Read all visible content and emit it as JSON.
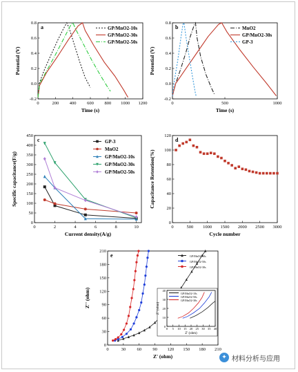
{
  "chart_data": [
    {
      "panel": "a",
      "type": "line",
      "xlabel": "Time (s)",
      "ylabel": "Potential (V)",
      "xlim": [
        0,
        1200
      ],
      "ylim": [
        -0.2,
        0.8
      ],
      "xticks": [
        0,
        200,
        400,
        600,
        800,
        1000,
        1200
      ],
      "yticks": [
        -0.2,
        0.0,
        0.2,
        0.4,
        0.6,
        0.8
      ],
      "legend_position": "top-right",
      "series": [
        {
          "name": "GP/MnO2-10s",
          "color": "#222222",
          "dash": "2,2",
          "points": [
            [
              0,
              -0.18
            ],
            [
              20,
              0.02
            ],
            [
              80,
              0.2
            ],
            [
              150,
              0.38
            ],
            [
              230,
              0.58
            ],
            [
              300,
              0.74
            ],
            [
              330,
              0.8
            ],
            [
              360,
              0.72
            ],
            [
              420,
              0.5
            ],
            [
              480,
              0.28
            ],
            [
              540,
              0.08
            ],
            [
              600,
              -0.05
            ]
          ]
        },
        {
          "name": "GP/MnO2-30s",
          "color": "#c0392b",
          "dash": "",
          "points": [
            [
              0,
              -0.18
            ],
            [
              20,
              -0.02
            ],
            [
              100,
              0.15
            ],
            [
              220,
              0.35
            ],
            [
              350,
              0.58
            ],
            [
              460,
              0.76
            ],
            [
              510,
              0.8
            ],
            [
              540,
              0.7
            ],
            [
              640,
              0.5
            ],
            [
              760,
              0.28
            ],
            [
              880,
              0.1
            ],
            [
              980,
              -0.08
            ],
            [
              1030,
              -0.18
            ]
          ]
        },
        {
          "name": "GP/MnO2-50s",
          "color": "#2ecc40",
          "dash": "6,2,1,2",
          "points": [
            [
              0,
              -0.18
            ],
            [
              20,
              0.0
            ],
            [
              100,
              0.17
            ],
            [
              200,
              0.38
            ],
            [
              290,
              0.58
            ],
            [
              370,
              0.76
            ],
            [
              400,
              0.8
            ],
            [
              430,
              0.72
            ],
            [
              520,
              0.52
            ],
            [
              620,
              0.3
            ],
            [
              720,
              0.1
            ],
            [
              800,
              -0.05
            ],
            [
              830,
              -0.1
            ]
          ]
        }
      ]
    },
    {
      "panel": "b",
      "type": "line",
      "xlabel": "Time (s)",
      "ylabel": "Potential (V)",
      "xlim": [
        0,
        1000
      ],
      "ylim": [
        -0.2,
        0.8
      ],
      "xticks": [
        0,
        500,
        1000
      ],
      "yticks": [
        -0.2,
        0.0,
        0.2,
        0.4,
        0.6,
        0.8
      ],
      "legend_position": "top-right",
      "series": [
        {
          "name": "MnO2",
          "color": "#222222",
          "dash": "6,2,1,2",
          "points": [
            [
              0,
              -0.16
            ],
            [
              30,
              0.0
            ],
            [
              80,
              0.2
            ],
            [
              130,
              0.42
            ],
            [
              170,
              0.62
            ],
            [
              210,
              0.78
            ],
            [
              220,
              0.8
            ],
            [
              235,
              0.6
            ],
            [
              270,
              0.35
            ],
            [
              320,
              0.12
            ],
            [
              370,
              -0.05
            ],
            [
              400,
              -0.14
            ]
          ]
        },
        {
          "name": "GP/MnO2-30s",
          "color": "#c0392b",
          "dash": "",
          "points": [
            [
              0,
              -0.16
            ],
            [
              30,
              0.0
            ],
            [
              120,
              0.18
            ],
            [
              230,
              0.4
            ],
            [
              340,
              0.62
            ],
            [
              440,
              0.78
            ],
            [
              470,
              0.8
            ],
            [
              520,
              0.68
            ],
            [
              640,
              0.45
            ],
            [
              770,
              0.22
            ],
            [
              900,
              0.0
            ],
            [
              990,
              -0.16
            ]
          ]
        },
        {
          "name": "GP-3",
          "color": "#3498db",
          "dash": "2,2",
          "points": [
            [
              0,
              -0.16
            ],
            [
              20,
              0.05
            ],
            [
              50,
              0.3
            ],
            [
              80,
              0.6
            ],
            [
              100,
              0.78
            ],
            [
              110,
              0.8
            ],
            [
              130,
              0.6
            ],
            [
              160,
              0.35
            ],
            [
              190,
              0.1
            ],
            [
              215,
              -0.1
            ],
            [
              225,
              -0.16
            ]
          ]
        }
      ]
    },
    {
      "panel": "c",
      "type": "line",
      "xlabel": "Current density(A/g)",
      "ylabel": "Specific capacitance(F/g)",
      "xlim": [
        0,
        10.5
      ],
      "ylim": [
        0,
        450
      ],
      "xticks": [
        0,
        2,
        4,
        6,
        8,
        10
      ],
      "yticks": [
        0,
        50,
        100,
        150,
        200,
        250,
        300,
        350,
        400,
        450
      ],
      "legend_position": "top-right",
      "categories": [
        1,
        2,
        5,
        10
      ],
      "series": [
        {
          "name": "GP-3",
          "color": "#222222",
          "marker": "square",
          "values": [
            185,
            88,
            40,
            22
          ]
        },
        {
          "name": "MnO2",
          "color": "#c0392b",
          "marker": "circle",
          "values": [
            118,
            98,
            70,
            50
          ]
        },
        {
          "name": "GP/MnO2-10s",
          "color": "#2c7fb8",
          "marker": "triangle",
          "values": [
            238,
            180,
            20,
            18
          ]
        },
        {
          "name": "GP/MnO2-30s",
          "color": "#2aa06b",
          "marker": "triangle-down",
          "values": [
            410,
            310,
            120,
            25
          ]
        },
        {
          "name": "GP/MnO2-50s",
          "color": "#b07fd6",
          "marker": "diamond",
          "values": [
            330,
            180,
            115,
            30
          ]
        }
      ]
    },
    {
      "panel": "d",
      "type": "scatter",
      "xlabel": "Cycle number",
      "ylabel": "Capacitance Retention(%)",
      "xlim": [
        0,
        3000
      ],
      "ylim": [
        0,
        120
      ],
      "xticks": [
        0,
        500,
        1000,
        1500,
        2000,
        2500,
        3000
      ],
      "yticks": [
        0,
        20,
        40,
        60,
        80,
        100,
        120
      ],
      "series": [
        {
          "name": "",
          "color": "#c0392b",
          "marker": "square",
          "points": [
            [
              100,
              100
            ],
            [
              200,
              106
            ],
            [
              300,
              109
            ],
            [
              400,
              111
            ],
            [
              500,
              114
            ],
            [
              600,
              106
            ],
            [
              700,
              104
            ],
            [
              800,
              97
            ],
            [
              900,
              95
            ],
            [
              1000,
              95
            ],
            [
              1100,
              96
            ],
            [
              1200,
              95
            ],
            [
              1300,
              91
            ],
            [
              1400,
              89
            ],
            [
              1500,
              85
            ],
            [
              1600,
              82
            ],
            [
              1700,
              79
            ],
            [
              1800,
              75
            ],
            [
              1900,
              77
            ],
            [
              2000,
              74
            ],
            [
              2100,
              73
            ],
            [
              2200,
              71
            ],
            [
              2300,
              70
            ],
            [
              2400,
              69
            ],
            [
              2500,
              68
            ],
            [
              2600,
              68
            ],
            [
              2700,
              68
            ],
            [
              2800,
              68
            ],
            [
              2900,
              68
            ],
            [
              3000,
              68
            ]
          ]
        }
      ]
    },
    {
      "panel": "e",
      "type": "scatter",
      "xlabel": "Z' (ohm)",
      "ylabel": "Z'' (ohm)",
      "xlim": [
        0,
        210
      ],
      "ylim": [
        0,
        210
      ],
      "xticks": [
        0,
        30,
        60,
        90,
        120,
        150,
        180,
        210
      ],
      "yticks": [
        0,
        30,
        60,
        90,
        120,
        150,
        180,
        210
      ],
      "legend_position": "top-right",
      "series": [
        {
          "name": "GP/MnO2-10s",
          "color": "#222222",
          "marker": "triangle",
          "points": [
            [
              20,
              10
            ],
            [
              30,
              14
            ],
            [
              40,
              18
            ],
            [
              50,
              22
            ],
            [
              60,
              27
            ],
            [
              70,
              33
            ],
            [
              80,
              40
            ],
            [
              90,
              50
            ],
            [
              100,
              62
            ],
            [
              110,
              75
            ],
            [
              120,
              92
            ],
            [
              130,
              110
            ],
            [
              140,
              128
            ],
            [
              150,
              146
            ],
            [
              160,
              164
            ],
            [
              170,
              182
            ],
            [
              180,
              200
            ],
            [
              186,
              210
            ]
          ]
        },
        {
          "name": "GP/MnO2-50s",
          "color": "#1f3fd9",
          "marker": "circle",
          "points": [
            [
              14,
              10
            ],
            [
              20,
              13
            ],
            [
              28,
              18
            ],
            [
              36,
              25
            ],
            [
              44,
              35
            ],
            [
              50,
              48
            ],
            [
              55,
              62
            ],
            [
              60,
              78
            ],
            [
              64,
              95
            ],
            [
              67,
              115
            ],
            [
              70,
              135
            ],
            [
              72,
              155
            ],
            [
              74,
              175
            ],
            [
              76,
              195
            ],
            [
              78,
              210
            ]
          ]
        },
        {
          "name": "GP/MnO2-30s",
          "color": "#d62728",
          "marker": "circle",
          "points": [
            [
              10,
              10
            ],
            [
              15,
              13
            ],
            [
              20,
              17
            ],
            [
              26,
              24
            ],
            [
              31,
              34
            ],
            [
              36,
              48
            ],
            [
              40,
              65
            ],
            [
              43,
              85
            ],
            [
              46,
              105
            ],
            [
              49,
              125
            ],
            [
              51,
              145
            ],
            [
              53,
              165
            ],
            [
              55,
              185
            ],
            [
              57,
              200
            ],
            [
              59,
              210
            ]
          ]
        }
      ],
      "inset": {
        "xlabel": "Z' (ohm)",
        "ylabel": "Z'' (ohm)",
        "xlim": [
          0,
          40
        ],
        "ylim": [
          0,
          40
        ],
        "xticks": [
          0,
          5,
          10,
          15,
          20,
          25,
          30,
          35,
          40
        ],
        "yticks": [
          0,
          10,
          20,
          30,
          40
        ],
        "series": [
          {
            "name": "GP/MnO2-10s",
            "color": "#222222",
            "points": [
              [
                19,
                9
              ],
              [
                24,
                12
              ],
              [
                29,
                16
              ],
              [
                34,
                21
              ],
              [
                38,
                26
              ],
              [
                40,
                28
              ]
            ]
          },
          {
            "name": "GP/MnO2-50s",
            "color": "#1f3fd9",
            "points": [
              [
                13,
                9
              ],
              [
                17,
                11
              ],
              [
                22,
                15
              ],
              [
                27,
                20
              ],
              [
                31,
                26
              ],
              [
                35,
                33
              ],
              [
                37,
                38
              ]
            ]
          },
          {
            "name": "GP/MnO2-30s",
            "color": "#d62728",
            "points": [
              [
                9,
                9
              ],
              [
                13,
                11
              ],
              [
                18,
                15
              ],
              [
                22,
                20
              ],
              [
                26,
                26
              ],
              [
                29,
                32
              ],
              [
                31,
                38
              ]
            ]
          }
        ]
      }
    }
  ],
  "panel_labels": {
    "a": "a",
    "b": "b",
    "c": "c",
    "d": "d",
    "e": "e"
  },
  "watermark": {
    "icon": "chat-bubble-icon",
    "text": "材料分析与应用"
  }
}
